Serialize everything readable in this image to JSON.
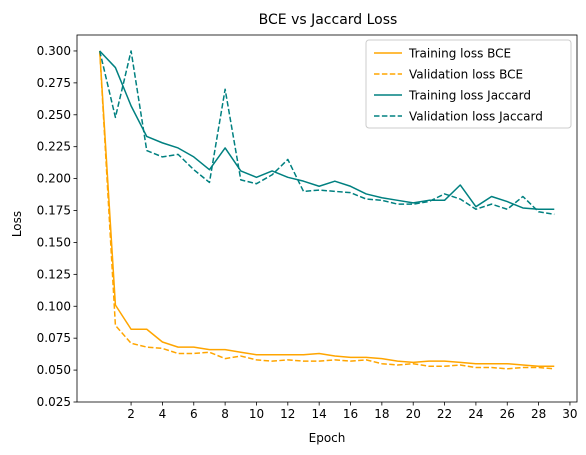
{
  "chart_data": {
    "type": "line",
    "title": "BCE vs Jaccard Loss",
    "xlabel": "Epoch",
    "ylabel": "Loss",
    "xlim": [
      -1.45,
      30.45
    ],
    "ylim": [
      0.025,
      0.3125
    ],
    "xticks": [
      2,
      4,
      6,
      8,
      10,
      12,
      14,
      16,
      18,
      20,
      22,
      24,
      26,
      28,
      30
    ],
    "yticks": [
      0.025,
      0.05,
      0.075,
      0.1,
      0.125,
      0.15,
      0.175,
      0.2,
      0.225,
      0.25,
      0.275,
      0.3
    ],
    "ytick_labels": [
      "0.025",
      "0.050",
      "0.075",
      "0.100",
      "0.125",
      "0.150",
      "0.175",
      "0.200",
      "0.225",
      "0.250",
      "0.275",
      "0.300"
    ],
    "grid": false,
    "legend_position": "top-right",
    "x": [
      0,
      1,
      2,
      3,
      4,
      5,
      6,
      7,
      8,
      9,
      10,
      11,
      12,
      13,
      14,
      15,
      16,
      17,
      18,
      19,
      20,
      21,
      22,
      23,
      24,
      25,
      26,
      27,
      28,
      29
    ],
    "series": [
      {
        "name": "Training loss BCE",
        "color": "#ffa500",
        "style": "solid",
        "values": [
          0.3,
          0.101,
          0.082,
          0.082,
          0.072,
          0.068,
          0.068,
          0.066,
          0.066,
          0.064,
          0.062,
          0.062,
          0.062,
          0.062,
          0.063,
          0.061,
          0.06,
          0.06,
          0.059,
          0.057,
          0.056,
          0.057,
          0.057,
          0.056,
          0.055,
          0.055,
          0.055,
          0.054,
          0.053,
          0.053
        ]
      },
      {
        "name": "Validation loss BCE",
        "color": "#ffa500",
        "style": "dashed",
        "values": [
          0.3,
          0.085,
          0.071,
          0.068,
          0.067,
          0.063,
          0.063,
          0.064,
          0.059,
          0.061,
          0.058,
          0.057,
          0.058,
          0.057,
          0.057,
          0.058,
          0.057,
          0.058,
          0.055,
          0.054,
          0.055,
          0.053,
          0.053,
          0.054,
          0.052,
          0.052,
          0.051,
          0.052,
          0.052,
          0.051
        ]
      },
      {
        "name": "Training loss Jaccard",
        "color": "#008080",
        "style": "solid",
        "values": [
          0.3,
          0.287,
          0.257,
          0.233,
          0.228,
          0.224,
          0.217,
          0.207,
          0.224,
          0.206,
          0.201,
          0.206,
          0.201,
          0.198,
          0.194,
          0.198,
          0.194,
          0.188,
          0.185,
          0.183,
          0.181,
          0.183,
          0.183,
          0.195,
          0.178,
          0.186,
          0.182,
          0.177,
          0.176,
          0.176
        ]
      },
      {
        "name": "Validation loss Jaccard",
        "color": "#008080",
        "style": "dashed",
        "values": [
          0.3,
          0.248,
          0.3,
          0.222,
          0.217,
          0.219,
          0.207,
          0.197,
          0.27,
          0.199,
          0.196,
          0.203,
          0.215,
          0.19,
          0.191,
          0.19,
          0.189,
          0.184,
          0.183,
          0.18,
          0.18,
          0.182,
          0.188,
          0.184,
          0.176,
          0.18,
          0.176,
          0.186,
          0.174,
          0.172
        ]
      }
    ]
  }
}
